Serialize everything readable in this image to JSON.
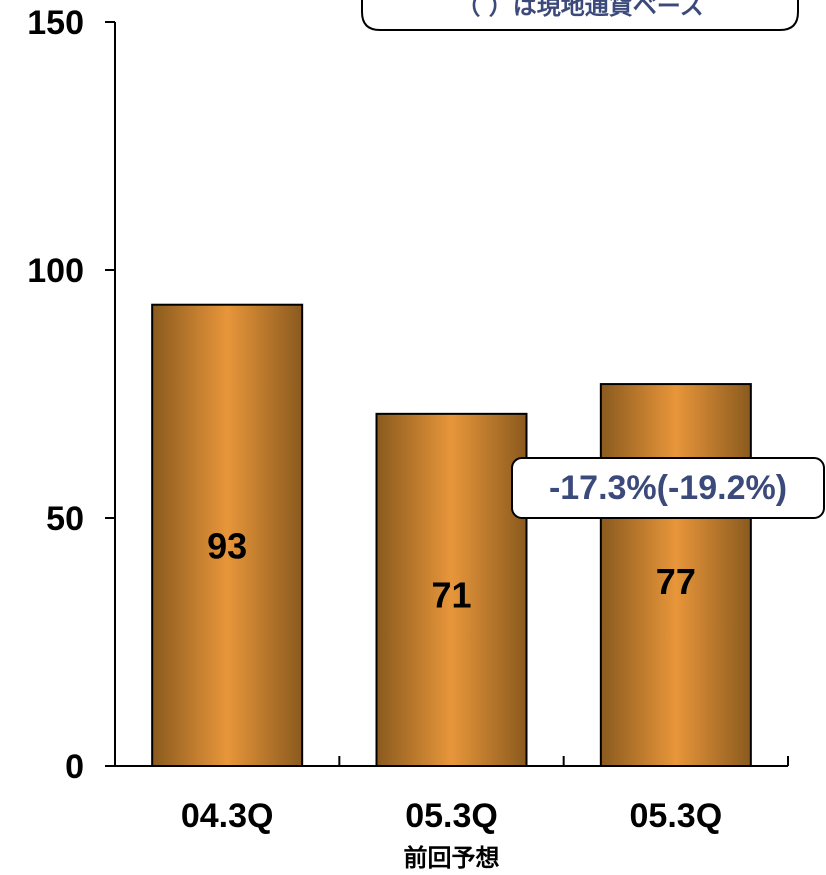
{
  "chart_data": {
    "type": "bar",
    "categories": [
      "04.3Q",
      "05.3Q",
      "05.3Q"
    ],
    "sublabels": [
      "",
      "前回予想",
      ""
    ],
    "values": [
      93,
      71,
      77
    ],
    "ylim": [
      0,
      150
    ],
    "yticks": [
      0,
      50,
      100,
      150
    ],
    "title": "",
    "xlabel": "",
    "ylabel": "",
    "grid": false,
    "bar_colors": {
      "edge": "#8a5a1e",
      "mid": "#e8963a"
    },
    "callout": {
      "text": "-17.3%(-19.2%)",
      "color": "#3b4a7a"
    },
    "note": {
      "text": "（ ）は現地通貨ベース",
      "color": "#3b4a7a"
    }
  }
}
